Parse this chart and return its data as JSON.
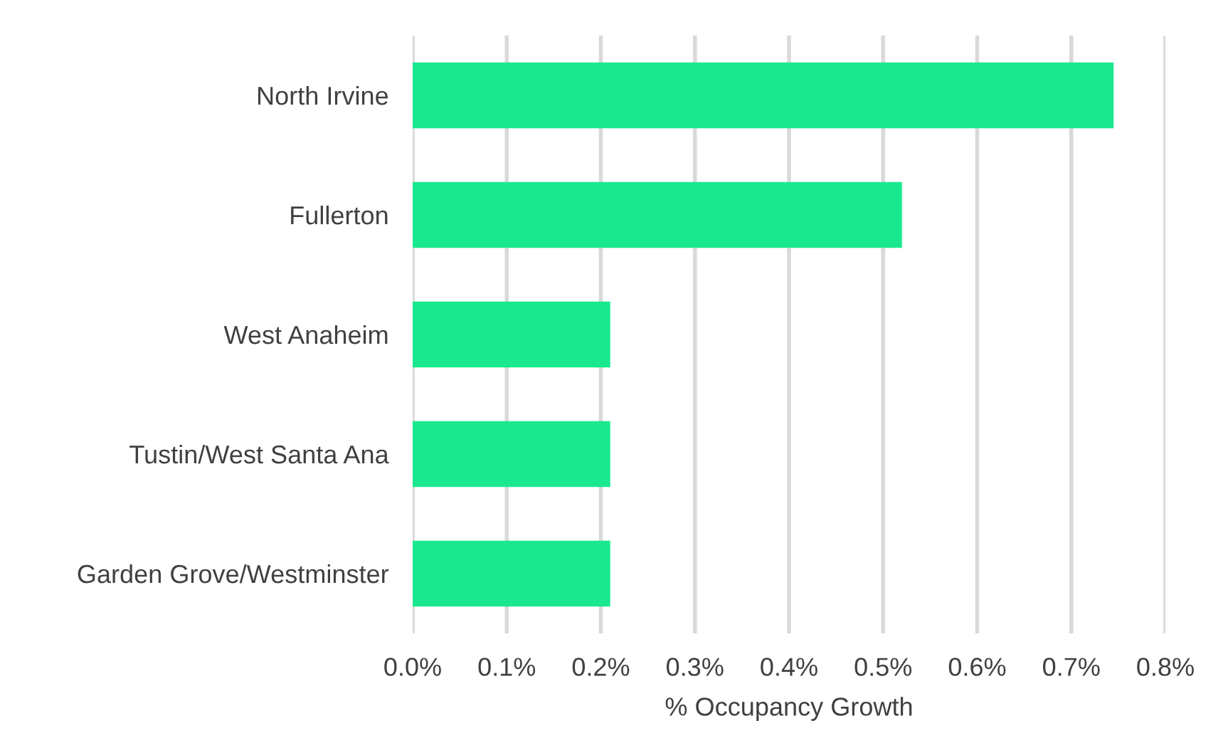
{
  "chart_data": {
    "type": "bar",
    "orientation": "horizontal",
    "xlabel": "% Occupancy Growth",
    "categories": [
      "North Irvine",
      "Fullerton",
      "West Anaheim",
      "Tustin/West Santa Ana",
      "Garden Grove/Westminster"
    ],
    "values": [
      0.745,
      0.52,
      0.21,
      0.21,
      0.21
    ],
    "color": "#1ae88f",
    "xlim": [
      0,
      0.8
    ],
    "xticks": [
      {
        "value": 0,
        "label": "0.0%"
      },
      {
        "value": 0.1,
        "label": "0.1%"
      },
      {
        "value": 0.2,
        "label": "0.2%"
      },
      {
        "value": 0.3,
        "label": "0.3%"
      },
      {
        "value": 0.4,
        "label": "0.4%"
      },
      {
        "value": 0.5,
        "label": "0.5%"
      },
      {
        "value": 0.6,
        "label": "0.6%"
      },
      {
        "value": 0.7,
        "label": "0.7%"
      },
      {
        "value": 0.8,
        "label": "0.8%"
      }
    ],
    "grid": "x",
    "legend": false
  }
}
